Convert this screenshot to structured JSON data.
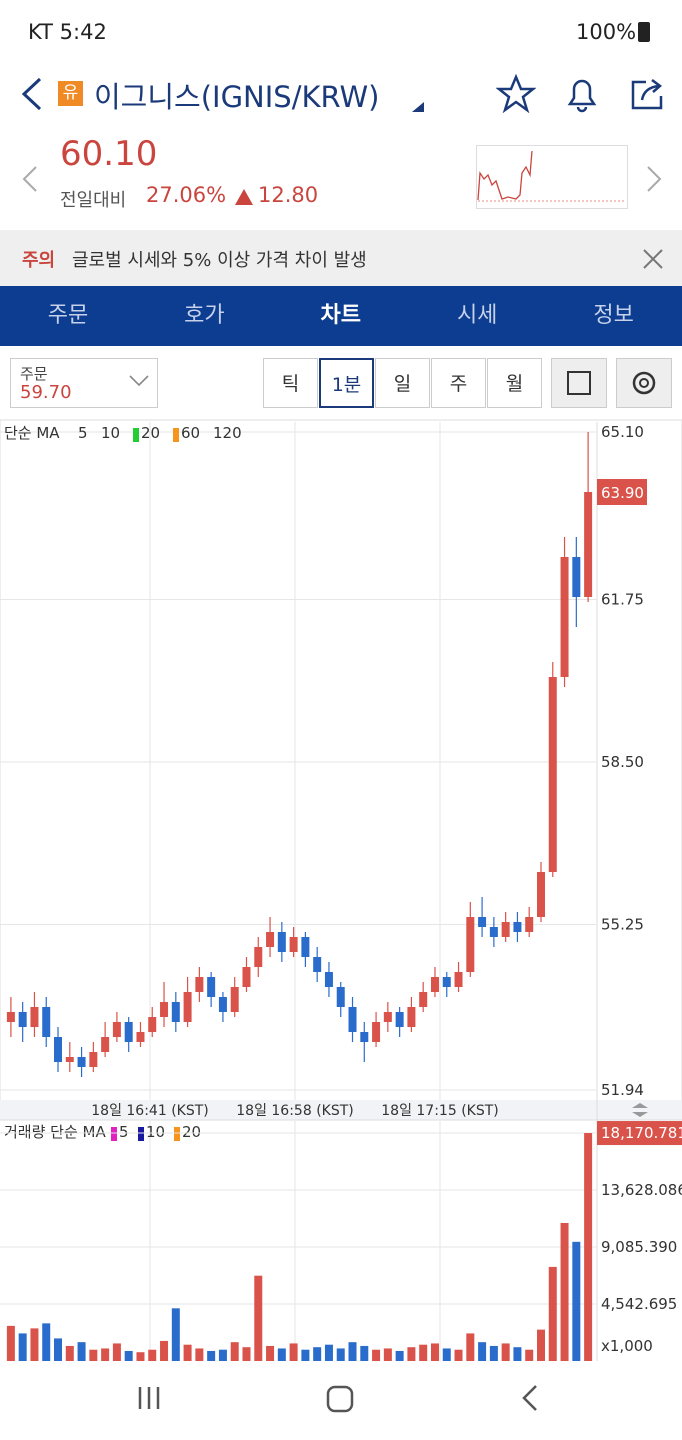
{
  "status": {
    "carrier_time": "KT 5:42",
    "battery": "100%"
  },
  "header": {
    "badge": "유",
    "title": "이그니스(IGNIS/KRW)"
  },
  "quote": {
    "price": "60.10",
    "change_label": "전일대비",
    "change_pct": "27.06%",
    "change_abs": "12.80"
  },
  "notice": {
    "tag": "주의",
    "text": "글로벌 시세와 5% 이상 가격 차이 발생"
  },
  "tabs": [
    "주문",
    "호가",
    "차트",
    "시세",
    "정보"
  ],
  "active_tab": 2,
  "order": {
    "label": "주문",
    "price": "59.70"
  },
  "intervals": [
    "틱",
    "1분",
    "일",
    "주",
    "월"
  ],
  "active_interval": 1,
  "chart": {
    "type": "candlestick",
    "ma_label": "단순 MA",
    "ma_legend": [
      {
        "name": "5"
      },
      {
        "name": "10"
      },
      {
        "name": "20",
        "color": "#22cc33"
      },
      {
        "name": "60",
        "color": "#f7941d"
      },
      {
        "name": "120"
      }
    ],
    "up_color": "#d9534a",
    "down_color": "#2a6ccc",
    "candles": [
      [
        53.3,
        53.8,
        53.0,
        53.5
      ],
      [
        53.5,
        53.7,
        52.9,
        53.2
      ],
      [
        53.2,
        53.9,
        53.0,
        53.6
      ],
      [
        53.6,
        53.8,
        52.8,
        53.0
      ],
      [
        53.0,
        53.2,
        52.3,
        52.5
      ],
      [
        52.5,
        52.9,
        52.3,
        52.6
      ],
      [
        52.6,
        52.8,
        52.2,
        52.4
      ],
      [
        52.4,
        52.9,
        52.3,
        52.7
      ],
      [
        52.7,
        53.3,
        52.6,
        53.0
      ],
      [
        53.0,
        53.5,
        52.9,
        53.3
      ],
      [
        53.3,
        53.4,
        52.7,
        52.9
      ],
      [
        52.9,
        53.3,
        52.8,
        53.1
      ],
      [
        53.1,
        53.6,
        53.0,
        53.4
      ],
      [
        53.4,
        54.1,
        53.2,
        53.7
      ],
      [
        53.7,
        53.9,
        53.1,
        53.3
      ],
      [
        53.3,
        54.2,
        53.2,
        53.9
      ],
      [
        53.9,
        54.4,
        53.7,
        54.2
      ],
      [
        54.2,
        54.3,
        53.6,
        53.8
      ],
      [
        53.8,
        53.9,
        53.3,
        53.5
      ],
      [
        53.5,
        54.2,
        53.4,
        54.0
      ],
      [
        54.0,
        54.6,
        53.9,
        54.4
      ],
      [
        54.4,
        55.0,
        54.2,
        54.8
      ],
      [
        54.8,
        55.4,
        54.6,
        55.1
      ],
      [
        55.1,
        55.3,
        54.5,
        54.7
      ],
      [
        54.7,
        55.2,
        54.6,
        55.0
      ],
      [
        55.0,
        55.1,
        54.4,
        54.6
      ],
      [
        54.6,
        54.8,
        54.1,
        54.3
      ],
      [
        54.3,
        54.5,
        53.8,
        54.0
      ],
      [
        54.0,
        54.1,
        53.4,
        53.6
      ],
      [
        53.6,
        53.8,
        52.9,
        53.1
      ],
      [
        53.1,
        53.3,
        52.5,
        52.9
      ],
      [
        52.9,
        53.5,
        52.8,
        53.3
      ],
      [
        53.3,
        53.7,
        53.1,
        53.5
      ],
      [
        53.5,
        53.6,
        53.0,
        53.2
      ],
      [
        53.2,
        53.8,
        53.1,
        53.6
      ],
      [
        53.6,
        54.1,
        53.5,
        53.9
      ],
      [
        53.9,
        54.4,
        53.8,
        54.2
      ],
      [
        54.2,
        54.3,
        53.8,
        54.0
      ],
      [
        54.0,
        54.5,
        53.9,
        54.3
      ],
      [
        54.3,
        55.7,
        54.2,
        55.4
      ],
      [
        55.4,
        55.8,
        55.0,
        55.2
      ],
      [
        55.2,
        55.4,
        54.8,
        55.0
      ],
      [
        55.0,
        55.5,
        54.9,
        55.3
      ],
      [
        55.3,
        55.5,
        54.9,
        55.1
      ],
      [
        55.1,
        55.6,
        55.0,
        55.4
      ],
      [
        55.4,
        56.5,
        55.3,
        56.3
      ],
      [
        56.3,
        60.5,
        56.2,
        60.2
      ],
      [
        60.2,
        63.0,
        60.0,
        62.6
      ],
      [
        62.6,
        63.0,
        61.2,
        61.8
      ],
      [
        61.8,
        65.1,
        61.7,
        63.9
      ]
    ],
    "ylim": [
      51.74,
      65.3
    ],
    "yticks": [
      {
        "value": 65.1,
        "label": "65.10"
      },
      61.75,
      {
        "value": 58.5,
        "label": "58.50"
      },
      55.25,
      51.94
    ],
    "last_price_label": "63.90",
    "x_labels": [
      "18일 16:41 (KST)",
      "18일 16:58 (KST)",
      "18일 17:15 (KST)"
    ]
  },
  "volume": {
    "ma_label": "거래량 단순 MA",
    "ma_legend": [
      {
        "name": "5",
        "color": "#e020c0"
      },
      {
        "name": "10",
        "color": "#1a1aa0"
      },
      {
        "name": "20",
        "color": "#f7941d"
      }
    ],
    "values": [
      2800,
      2200,
      2600,
      3000,
      1800,
      1200,
      1500,
      900,
      1000,
      1400,
      800,
      700,
      900,
      1600,
      4200,
      1300,
      1000,
      800,
      900,
      1500,
      1100,
      6800,
      1200,
      1000,
      1400,
      900,
      1100,
      1300,
      1000,
      1500,
      1200,
      900,
      1000,
      800,
      1100,
      1300,
      1400,
      1000,
      900,
      2200,
      1500,
      1200,
      1400,
      1100,
      900,
      2500,
      7500,
      11000,
      9500,
      18170.781
    ],
    "ylim": [
      0,
      19130
    ],
    "yticks": [
      {
        "value": 18170.781,
        "label": "18,170.781"
      },
      {
        "value": 13628.086,
        "label": "13,628.086"
      },
      {
        "value": 9085.39,
        "label": "9,085.390"
      },
      {
        "value": 4542.695,
        "label": "4,542.695"
      }
    ],
    "unit": "x1,000"
  }
}
